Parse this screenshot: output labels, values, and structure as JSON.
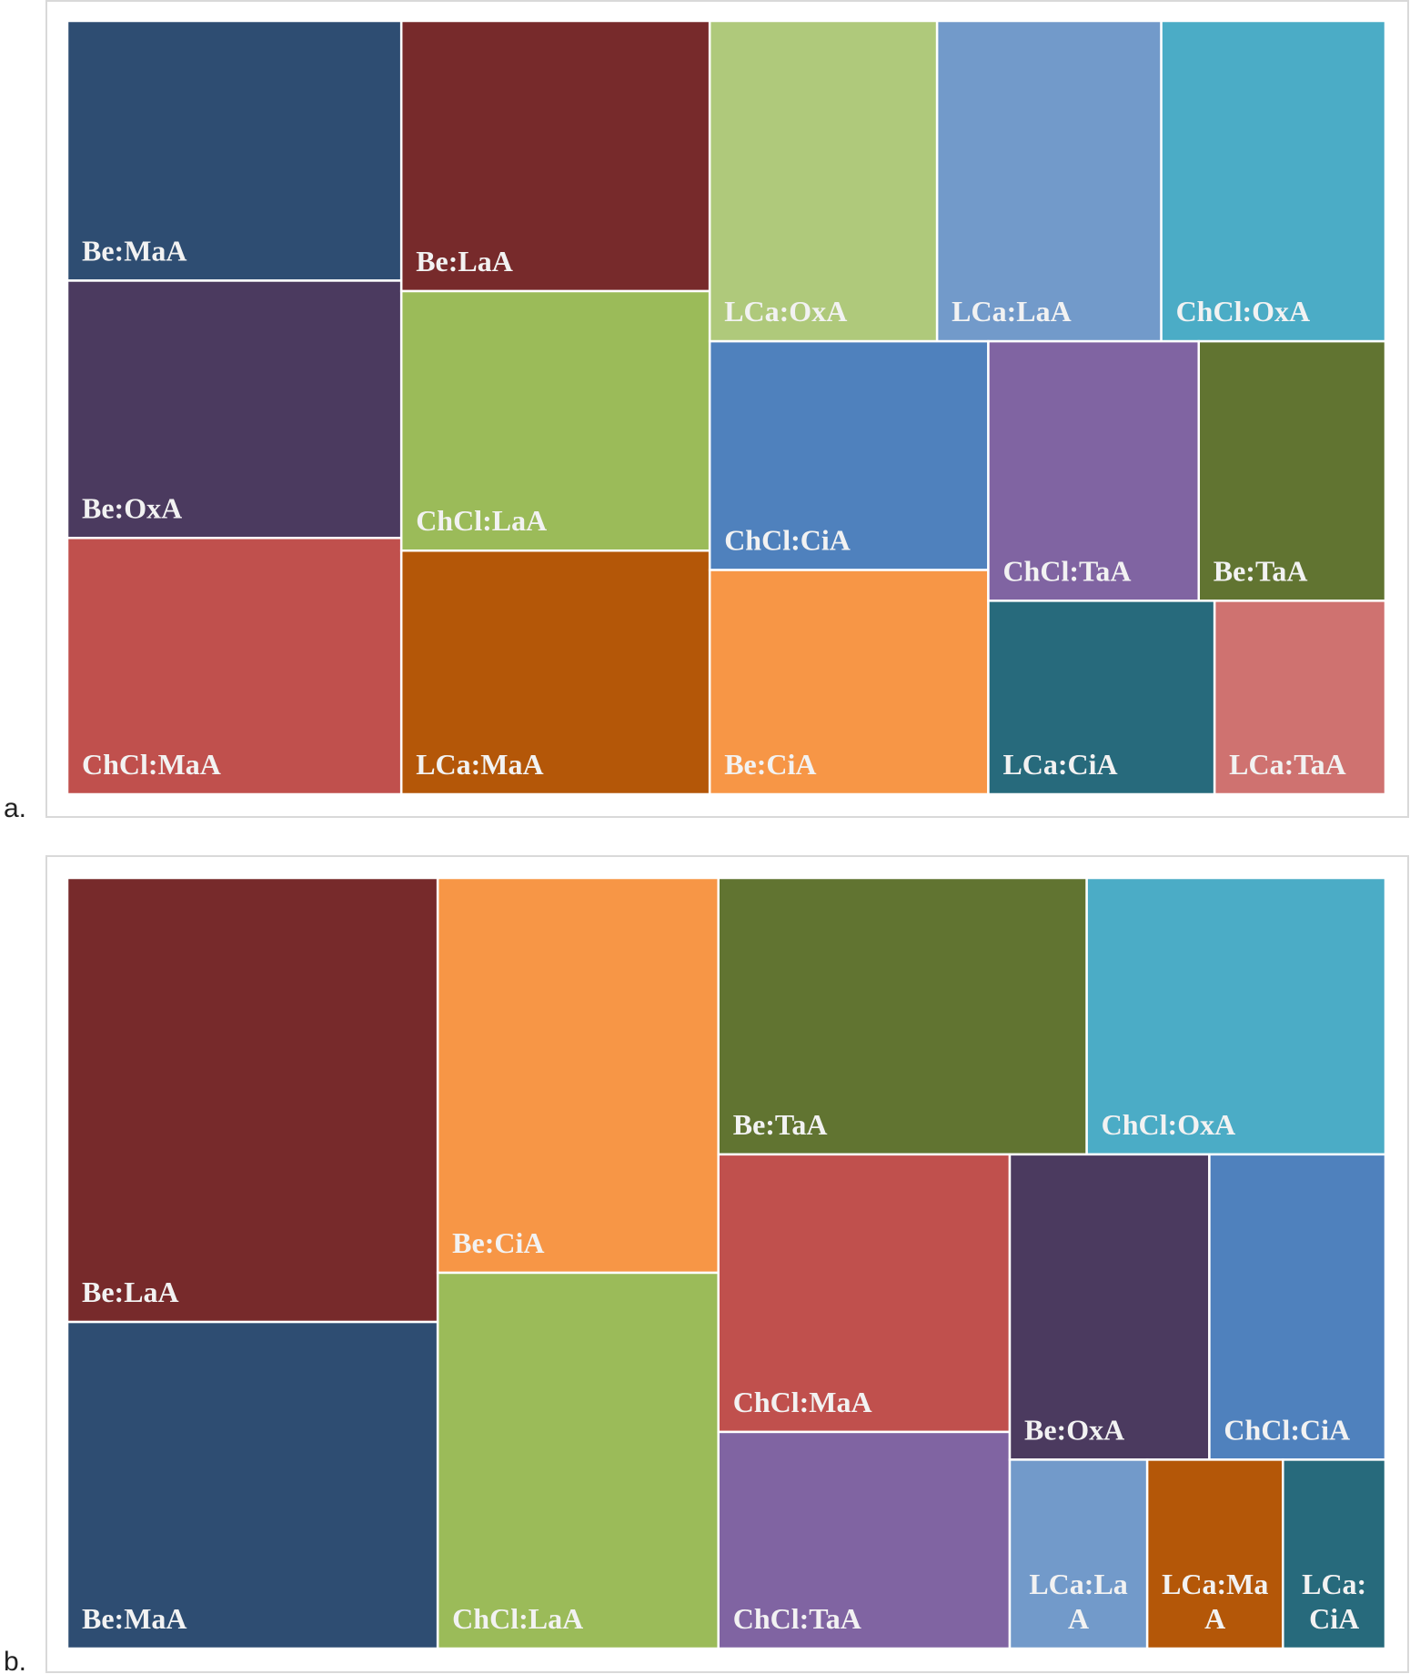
{
  "chart_data": [
    {
      "type": "treemap",
      "label": "a.",
      "categories": [
        "Be:MaA",
        "Be:OxA",
        "ChCl:MaA",
        "Be:LaA",
        "ChCl:LaA",
        "LCa:MaA",
        "LCa:OxA",
        "LCa:LaA",
        "ChCl:OxA",
        "ChCl:CiA",
        "Be:CiA",
        "ChCl:TaA",
        "Be:TaA",
        "LCa:CiA",
        "LCa:TaA"
      ],
      "values": [
        76.1,
        75.4,
        75.1,
        73.1,
        70.2,
        65.9,
        63.9,
        63.0,
        63.0,
        55.9,
        54.8,
        47.9,
        42.5,
        38.4,
        29.0
      ],
      "colors": [
        "#2e4d72",
        "#4b3a5f",
        "#c0504d",
        "#772a2b",
        "#9bbb59",
        "#b45708",
        "#afc97b",
        "#729aca",
        "#4bacc6",
        "#4f81bd",
        "#f79646",
        "#8064a2",
        "#617431",
        "#276a7c",
        "#cf7270"
      ]
    },
    {
      "type": "treemap",
      "label": "b.",
      "categories": [
        "Be:LaA",
        "Be:MaA",
        "Be:CiA",
        "ChCl:LaA",
        "Be:TaA",
        "ChCl:OxA",
        "ChCl:MaA",
        "ChCl:TaA",
        "Be:OxA",
        "ChCl:CiA",
        "LCa:LaA",
        "LCa:MaA",
        "LCa:CiA"
      ],
      "values": [
        144.4,
        106.2,
        97.3,
        92.6,
        89.4,
        72.5,
        71.0,
        55.4,
        53.5,
        47.2,
        22.8,
        22.5,
        17.0
      ],
      "colors": [
        "#772a2b",
        "#2e4d72",
        "#f79646",
        "#9bbb59",
        "#617431",
        "#4bacc6",
        "#c0504d",
        "#8064a2",
        "#4b3a5f",
        "#4f81bd",
        "#729aca",
        "#b45708",
        "#276a7c"
      ]
    }
  ]
}
